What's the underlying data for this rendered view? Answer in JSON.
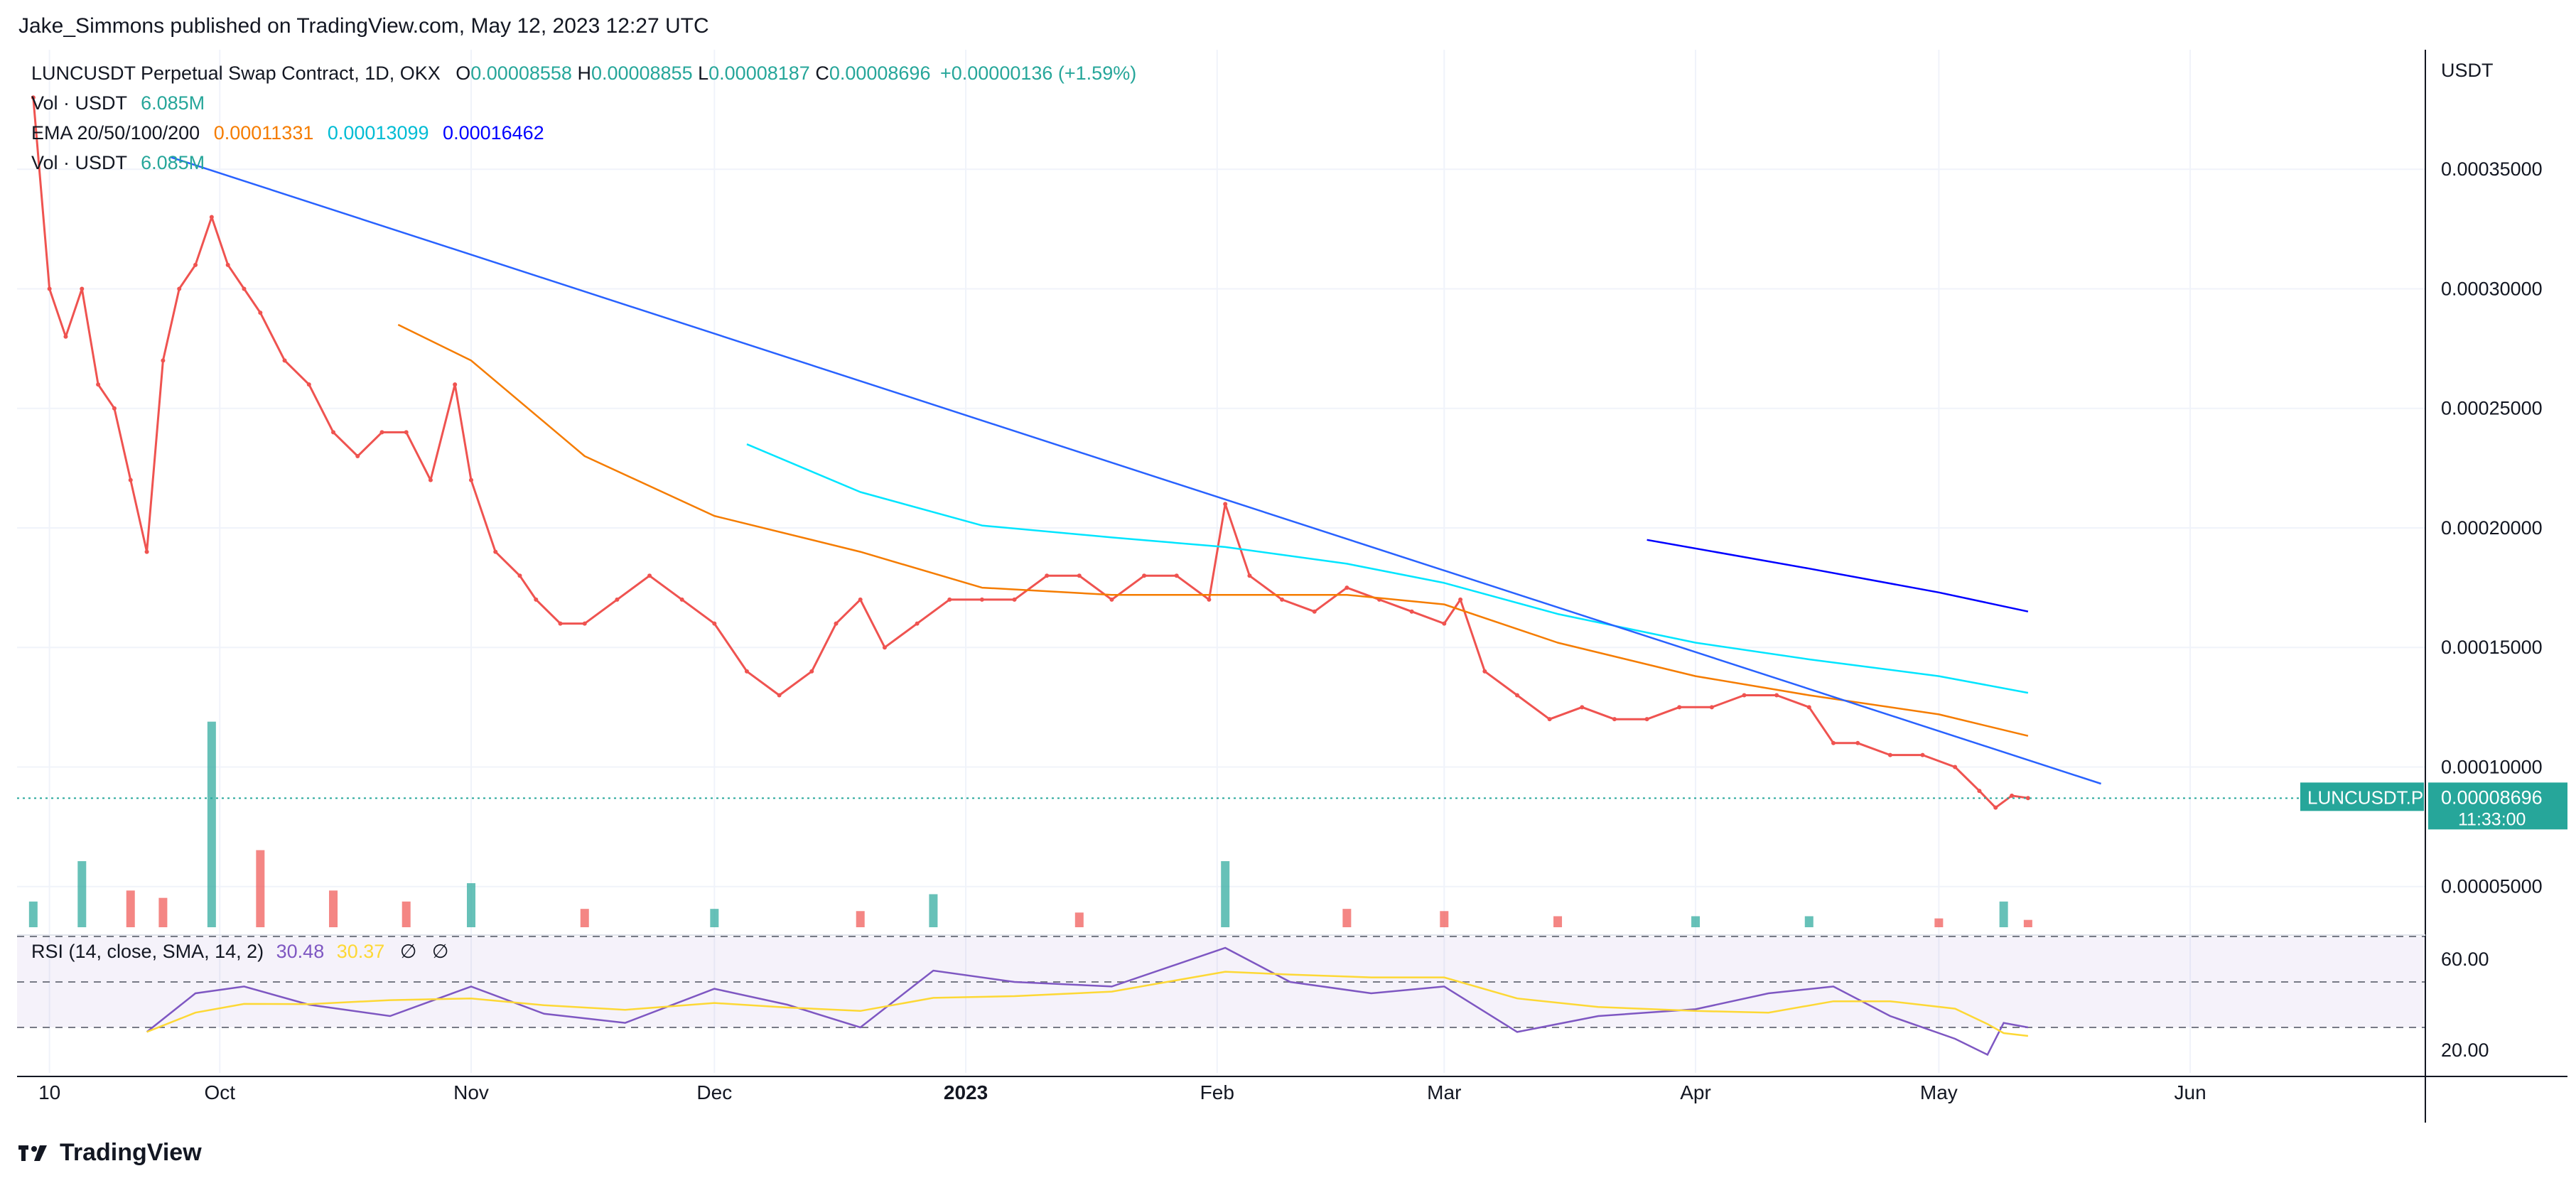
{
  "header": {
    "publisher_line": "Jake_Simmons published on TradingView.com, May 12, 2023 12:27 UTC"
  },
  "legend": {
    "symbol_line": "LUNCUSDT Perpetual Swap Contract, 1D, OKX",
    "ohlc": {
      "o_label": "O",
      "o": "0.00008558",
      "h_label": "H",
      "h": "0.00008855",
      "l_label": "L",
      "l": "0.00008187",
      "c_label": "C",
      "c": "0.00008696",
      "change": "+0.00000136 (+1.59%)"
    },
    "vol1_label": "Vol · USDT",
    "vol1_value": "6.085M",
    "ema_label": "EMA 20/50/100/200",
    "ema_values": [
      "0.00011331",
      "0.00013099",
      "0.00016462"
    ],
    "vol2_label": "Vol · USDT",
    "vol2_value": "6.085M"
  },
  "rsi_legend": {
    "label": "RSI (14, close, SMA, 14, 2)",
    "value1": "30.48",
    "value2": "30.37",
    "sym1": "∅",
    "sym2": "∅"
  },
  "price_axis": {
    "unit": "USDT",
    "ticks": [
      "0.00035000",
      "0.00030000",
      "0.00025000",
      "0.00020000",
      "0.00015000",
      "0.00010000",
      "0.00005000"
    ],
    "last_price_label": "0.00008696",
    "countdown": "11:33:00",
    "symbol_tag": "LUNCUSDT.P"
  },
  "rsi_axis": {
    "ticks": [
      "60.00",
      "20.00"
    ]
  },
  "time_axis": {
    "ticks": [
      "10",
      "Oct",
      "Nov",
      "Dec",
      "2023",
      "Feb",
      "Mar",
      "Apr",
      "May",
      "Jun"
    ]
  },
  "footer": {
    "brand": "TradingView"
  },
  "colors": {
    "up": "#26a69a",
    "down": "#ef5350",
    "ema20": "#f57c00",
    "ema50": "#00e5ff",
    "ema200": "#0000ff",
    "trendline": "#2962ff",
    "rsi": "#7e57c2",
    "rsi_ma": "#fdd835"
  },
  "chart_data": {
    "type": "line",
    "title": "LUNCUSDT Perpetual Swap Contract, 1D, OKX",
    "xlabel": "",
    "ylabel": "USDT",
    "x_range": [
      "2022-09-06",
      "2023-06-30"
    ],
    "ylim": [
      3e-05,
      0.0004
    ],
    "grid": true,
    "legend_position": "top-left",
    "series": [
      {
        "name": "LUNCUSDT.P close",
        "x": [
          "2022-09-08",
          "2022-09-10",
          "2022-09-12",
          "2022-09-14",
          "2022-09-16",
          "2022-09-18",
          "2022-09-20",
          "2022-09-22",
          "2022-09-24",
          "2022-09-26",
          "2022-09-28",
          "2022-09-30",
          "2022-10-02",
          "2022-10-04",
          "2022-10-06",
          "2022-10-09",
          "2022-10-12",
          "2022-10-15",
          "2022-10-18",
          "2022-10-21",
          "2022-10-24",
          "2022-10-27",
          "2022-10-30",
          "2022-11-01",
          "2022-11-04",
          "2022-11-07",
          "2022-11-09",
          "2022-11-12",
          "2022-11-15",
          "2022-11-19",
          "2022-11-23",
          "2022-11-27",
          "2022-12-01",
          "2022-12-05",
          "2022-12-09",
          "2022-12-13",
          "2022-12-16",
          "2022-12-19",
          "2022-12-22",
          "2022-12-26",
          "2022-12-30",
          "2023-01-03",
          "2023-01-07",
          "2023-01-11",
          "2023-01-15",
          "2023-01-19",
          "2023-01-23",
          "2023-01-27",
          "2023-01-31",
          "2023-02-02",
          "2023-02-05",
          "2023-02-09",
          "2023-02-13",
          "2023-02-17",
          "2023-02-21",
          "2023-02-25",
          "2023-03-01",
          "2023-03-03",
          "2023-03-06",
          "2023-03-10",
          "2023-03-14",
          "2023-03-18",
          "2023-03-22",
          "2023-03-26",
          "2023-03-30",
          "2023-04-03",
          "2023-04-07",
          "2023-04-11",
          "2023-04-15",
          "2023-04-18",
          "2023-04-21",
          "2023-04-25",
          "2023-04-29",
          "2023-05-03",
          "2023-05-06",
          "2023-05-08",
          "2023-05-10",
          "2023-05-12"
        ],
        "y": [
          0.00038,
          0.0003,
          0.00028,
          0.0003,
          0.00026,
          0.00025,
          0.00022,
          0.00019,
          0.00027,
          0.0003,
          0.00031,
          0.00033,
          0.00031,
          0.0003,
          0.00029,
          0.00027,
          0.00026,
          0.00024,
          0.00023,
          0.00024,
          0.00024,
          0.00022,
          0.00026,
          0.00022,
          0.00019,
          0.00018,
          0.00017,
          0.00016,
          0.00016,
          0.00017,
          0.00018,
          0.00017,
          0.00016,
          0.00014,
          0.00013,
          0.00014,
          0.00016,
          0.00017,
          0.00015,
          0.00016,
          0.00017,
          0.00017,
          0.00017,
          0.00018,
          0.00018,
          0.00017,
          0.00018,
          0.00018,
          0.00017,
          0.00021,
          0.00018,
          0.00017,
          0.000165,
          0.000175,
          0.00017,
          0.000165,
          0.00016,
          0.00017,
          0.00014,
          0.00013,
          0.00012,
          0.000125,
          0.00012,
          0.00012,
          0.000125,
          0.000125,
          0.00013,
          0.00013,
          0.000125,
          0.00011,
          0.00011,
          0.000105,
          0.000105,
          0.0001,
          9e-05,
          8.3e-05,
          8.8e-05,
          8.7e-05
        ]
      },
      {
        "name": "EMA 50",
        "x": [
          "2022-10-23",
          "2022-11-01",
          "2022-11-15",
          "2022-12-01",
          "2022-12-19",
          "2023-01-03",
          "2023-01-19",
          "2023-02-02",
          "2023-02-17",
          "2023-03-01",
          "2023-03-15",
          "2023-04-01",
          "2023-04-15",
          "2023-05-01",
          "2023-05-12"
        ],
        "y": [
          0.000285,
          0.00027,
          0.00023,
          0.000205,
          0.00019,
          0.000175,
          0.000172,
          0.000172,
          0.000172,
          0.000168,
          0.000152,
          0.000138,
          0.00013,
          0.000122,
          0.000113
        ]
      },
      {
        "name": "EMA 100",
        "x": [
          "2022-12-05",
          "2022-12-19",
          "2023-01-03",
          "2023-01-19",
          "2023-02-02",
          "2023-02-17",
          "2023-03-01",
          "2023-03-15",
          "2023-04-01",
          "2023-04-15",
          "2023-05-01",
          "2023-05-12"
        ],
        "y": [
          0.000235,
          0.000215,
          0.000201,
          0.000196,
          0.000192,
          0.000185,
          0.000177,
          0.000164,
          0.000152,
          0.000145,
          0.000138,
          0.000131
        ]
      },
      {
        "name": "EMA 200",
        "x": [
          "2023-03-26",
          "2023-04-15",
          "2023-05-01",
          "2023-05-12"
        ],
        "y": [
          0.000195,
          0.000183,
          0.000173,
          0.000165
        ]
      },
      {
        "name": "Trendline",
        "x": [
          "2022-09-25",
          "2023-05-21"
        ],
        "y": [
          0.000355,
          9.3e-05
        ]
      }
    ],
    "volume": {
      "x": [
        "2022-09-08",
        "2022-09-14",
        "2022-09-20",
        "2022-09-24",
        "2022-09-30",
        "2022-10-06",
        "2022-10-15",
        "2022-10-24",
        "2022-11-01",
        "2022-11-15",
        "2022-12-01",
        "2022-12-19",
        "2022-12-28",
        "2023-01-15",
        "2023-02-02",
        "2023-02-17",
        "2023-03-01",
        "2023-03-15",
        "2023-04-01",
        "2023-04-15",
        "2023-05-01",
        "2023-05-09",
        "2023-05-12"
      ],
      "y": [
        3.5,
        9.0,
        5.0,
        4.0,
        28.0,
        10.5,
        5.0,
        3.5,
        6.0,
        2.5,
        2.5,
        2.2,
        4.5,
        2.0,
        9.0,
        2.5,
        2.2,
        1.5,
        1.5,
        1.5,
        1.2,
        3.5,
        1.0
      ]
    },
    "rsi": {
      "ylim": [
        10,
        70
      ],
      "x": [
        "2022-09-22",
        "2022-09-28",
        "2022-10-04",
        "2022-10-12",
        "2022-10-22",
        "2022-11-01",
        "2022-11-10",
        "2022-11-20",
        "2022-12-01",
        "2022-12-10",
        "2022-12-19",
        "2022-12-28",
        "2023-01-07",
        "2023-01-19",
        "2023-02-02",
        "2023-02-10",
        "2023-02-20",
        "2023-03-01",
        "2023-03-10",
        "2023-03-20",
        "2023-04-01",
        "2023-04-10",
        "2023-04-18",
        "2023-04-25",
        "2023-05-03",
        "2023-05-07",
        "2023-05-09",
        "2023-05-12"
      ],
      "y": [
        28,
        45,
        48,
        40,
        35,
        48,
        36,
        32,
        47,
        40,
        30,
        55,
        50,
        48,
        65,
        50,
        45,
        48,
        28,
        35,
        38,
        45,
        48,
        35,
        25,
        18,
        32,
        30
      ]
    }
  }
}
